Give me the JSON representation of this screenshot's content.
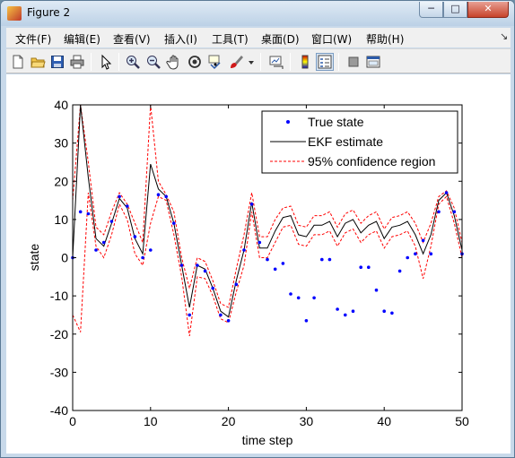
{
  "window": {
    "title": "Figure 2",
    "min_glyph": "─",
    "max_glyph": "□",
    "close_glyph": "✕"
  },
  "menu": {
    "items": [
      "文件(F)",
      "编辑(E)",
      "查看(V)",
      "插入(I)",
      "工具(T)",
      "桌面(D)",
      "窗口(W)",
      "帮助(H)"
    ],
    "arrow": "↘"
  },
  "toolbar": {
    "icons": [
      "new-figure-icon",
      "open-file-icon",
      "save-icon",
      "print-icon",
      "edit-plot-arrow-icon",
      "zoom-in-icon",
      "zoom-out-icon",
      "pan-hand-icon",
      "rotate-3d-icon",
      "data-cursor-icon",
      "brush-icon",
      "brush-dropdown-icon",
      "link-plot-icon",
      "colorbar-icon",
      "legend-icon",
      "hide-plot-tools-icon",
      "show-plot-tools-icon"
    ]
  },
  "chart_data": {
    "type": "line",
    "xlabel": "time step",
    "ylabel": "state",
    "xlim": [
      0,
      50
    ],
    "ylim": [
      -40,
      40
    ],
    "xticks": [
      0,
      10,
      20,
      30,
      40,
      50
    ],
    "yticks": [
      -40,
      -30,
      -20,
      -10,
      0,
      10,
      20,
      30,
      40
    ],
    "grid": false,
    "legend_position": "top-right",
    "x": [
      0,
      1,
      2,
      3,
      4,
      5,
      6,
      7,
      8,
      9,
      10,
      11,
      12,
      13,
      14,
      15,
      16,
      17,
      18,
      19,
      20,
      21,
      22,
      23,
      24,
      25,
      26,
      27,
      28,
      29,
      30,
      31,
      32,
      33,
      34,
      35,
      36,
      37,
      38,
      39,
      40,
      41,
      42,
      43,
      44,
      45,
      46,
      47,
      48,
      49,
      50
    ],
    "series": [
      {
        "name": "True state",
        "style": "points",
        "color": "#0000ff",
        "values": [
          0,
          12,
          11.5,
          2,
          4,
          9.5,
          16,
          13.5,
          5.5,
          0,
          2,
          16.5,
          16,
          9,
          -2,
          -15,
          -2,
          -3.5,
          -8,
          -15,
          -16.5,
          -7,
          2,
          14,
          4,
          -0.5,
          -3,
          -1.5,
          -9.5,
          -10.5,
          -16.5,
          -10.5,
          -0.5,
          -0.5,
          -13.5,
          -15,
          -14,
          -2.5,
          -2.5,
          -8.5,
          -14,
          -14.5,
          -3.5,
          0,
          1,
          4.5,
          1,
          12,
          17,
          12,
          1
        ]
      },
      {
        "name": "EKF estimate",
        "style": "solid",
        "color": "#000000",
        "values": [
          0,
          42,
          21,
          5,
          3,
          9,
          15.5,
          13,
          5,
          1,
          24.5,
          18,
          16,
          9,
          -2,
          -13,
          -2,
          -3,
          -8,
          -14,
          -15.5,
          -6,
          2,
          14.5,
          2.5,
          2.5,
          7,
          10.5,
          11,
          6,
          5.5,
          8.5,
          8.5,
          9.5,
          5.5,
          9,
          10,
          6.5,
          8.5,
          9.5,
          5,
          8,
          8.5,
          9.5,
          6,
          1,
          6,
          15,
          17,
          11,
          2
        ]
      },
      {
        "name": "95% confidence region",
        "style": "dashed",
        "color": "#ff0000",
        "upper": [
          15,
          42,
          25,
          8,
          6,
          12,
          17,
          14,
          9,
          4,
          40,
          20,
          16.5,
          12,
          0,
          -8,
          0,
          -1,
          -6,
          -12,
          -13,
          -3,
          6,
          17,
          5.5,
          5.5,
          10,
          13,
          13.5,
          8.5,
          8,
          11,
          11,
          12,
          8,
          11.5,
          12.5,
          9,
          11,
          12,
          7.5,
          10.5,
          11,
          12,
          9,
          4,
          9,
          16,
          17.5,
          13,
          4
        ],
        "lower": [
          -15,
          -19.5,
          17,
          3,
          0,
          6,
          14,
          10,
          1,
          -2,
          9,
          16,
          15,
          6,
          -5,
          -20.5,
          -5,
          -5.5,
          -10,
          -16,
          -17,
          -9,
          -2,
          12,
          0,
          0,
          4,
          8,
          8.5,
          3.5,
          3,
          6,
          6,
          7,
          3,
          6.5,
          7.5,
          4,
          6,
          7,
          2.5,
          5.5,
          6,
          7,
          3,
          -5.5,
          3,
          14,
          16,
          9,
          0
        ]
      }
    ]
  }
}
